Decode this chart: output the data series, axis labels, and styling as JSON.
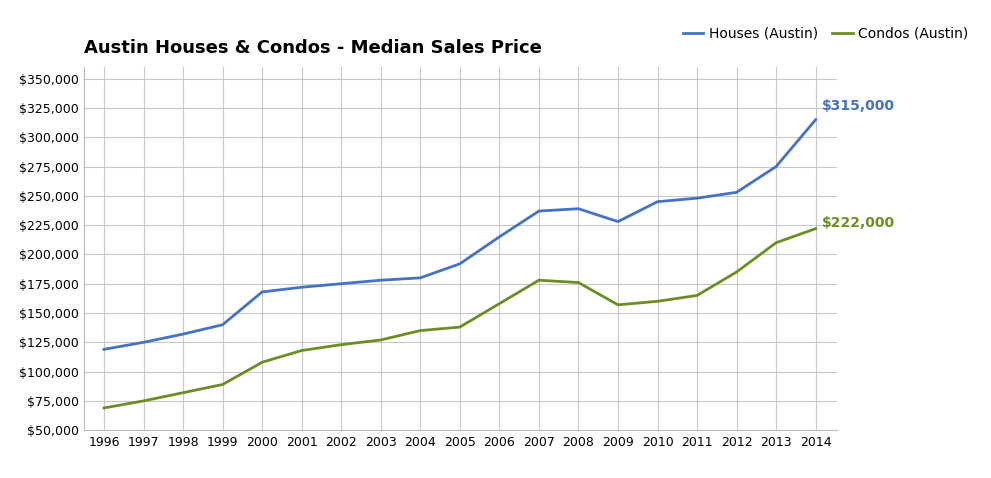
{
  "title": "Austin Houses & Condos - Median Sales Price",
  "years": [
    1996,
    1997,
    1998,
    1999,
    2000,
    2001,
    2002,
    2003,
    2004,
    2005,
    2006,
    2007,
    2008,
    2009,
    2010,
    2011,
    2012,
    2013,
    2014
  ],
  "houses": [
    119000,
    125000,
    132000,
    140000,
    168000,
    172000,
    175000,
    178000,
    180000,
    192000,
    215000,
    237000,
    239000,
    228000,
    245000,
    248000,
    253000,
    275000,
    315000
  ],
  "condos": [
    69000,
    75000,
    82000,
    89000,
    108000,
    118000,
    123000,
    127000,
    135000,
    138000,
    158000,
    178000,
    176000,
    157000,
    160000,
    165000,
    185000,
    210000,
    222000
  ],
  "house_color": "#4472C4",
  "condo_color": "#6B8E23",
  "house_label": "Houses (Austin)",
  "condo_label": "Condos (Austin)",
  "house_end_label": "$315,000",
  "condo_end_label": "$222,000",
  "ylim": [
    50000,
    360000
  ],
  "yticks": [
    50000,
    75000,
    100000,
    125000,
    150000,
    175000,
    200000,
    225000,
    250000,
    275000,
    300000,
    325000,
    350000
  ],
  "xlim_left": 1995.5,
  "xlim_right": 2014.55,
  "background_color": "#FFFFFF",
  "plot_bg_color": "#FFFFFF",
  "grid_color": "#C8C8C8",
  "title_fontsize": 13,
  "axis_fontsize": 9,
  "legend_fontsize": 10,
  "linewidth": 2.0
}
